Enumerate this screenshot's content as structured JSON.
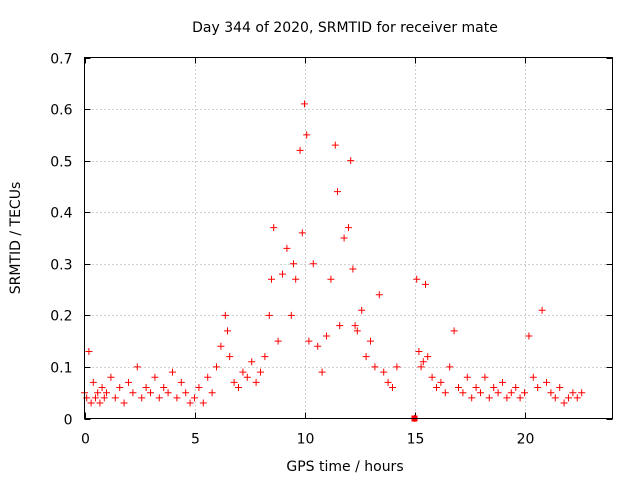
{
  "chart_data": {
    "type": "scatter",
    "title": "Day 344 of 2020, SRMTID for receiver mate",
    "xlabel": "GPS time / hours",
    "ylabel": "SRMTID / TECUs",
    "xlim": [
      0,
      24
    ],
    "ylim": [
      0,
      0.7
    ],
    "xticks": [
      0,
      5,
      10,
      15,
      20
    ],
    "yticks": [
      0,
      0.1,
      0.2,
      0.3,
      0.4,
      0.5,
      0.6,
      0.7
    ],
    "xtick_labels": [
      "0",
      "5",
      "10",
      "15",
      "20"
    ],
    "ytick_labels": [
      "0",
      "0.1",
      "0.2",
      "0.3",
      "0.4",
      "0.5",
      "0.6",
      "0.7"
    ],
    "grid": true,
    "marker": "+",
    "color": "#ff0000",
    "series": [
      {
        "name": "SRMTID",
        "x": [
          0.0,
          0.1,
          0.2,
          0.3,
          0.4,
          0.5,
          0.6,
          0.7,
          0.8,
          0.9,
          1.0,
          1.2,
          1.4,
          1.6,
          1.8,
          2.0,
          2.2,
          2.4,
          2.6,
          2.8,
          3.0,
          3.2,
          3.4,
          3.6,
          3.8,
          4.0,
          4.2,
          4.4,
          4.6,
          4.8,
          5.0,
          5.2,
          5.4,
          5.6,
          5.8,
          6.0,
          6.2,
          6.4,
          6.5,
          6.6,
          6.8,
          7.0,
          7.2,
          7.4,
          7.6,
          7.8,
          8.0,
          8.2,
          8.4,
          8.5,
          8.6,
          8.8,
          9.0,
          9.2,
          9.4,
          9.5,
          9.6,
          9.8,
          9.9,
          10.0,
          10.1,
          10.2,
          10.4,
          10.6,
          10.8,
          11.0,
          11.2,
          11.4,
          11.5,
          11.6,
          11.8,
          12.0,
          12.1,
          12.2,
          12.3,
          12.4,
          12.6,
          12.8,
          13.0,
          13.2,
          13.4,
          13.6,
          13.8,
          14.0,
          14.2,
          15.0,
          15.1,
          15.2,
          15.3,
          15.4,
          15.5,
          15.6,
          15.8,
          16.0,
          16.2,
          16.4,
          16.6,
          16.8,
          17.0,
          17.2,
          17.4,
          17.6,
          17.8,
          18.0,
          18.2,
          18.4,
          18.6,
          18.8,
          19.0,
          19.2,
          19.4,
          19.6,
          19.8,
          20.0,
          20.2,
          20.4,
          20.6,
          20.8,
          21.0,
          21.2,
          21.4,
          21.6,
          21.8,
          22.0,
          22.2,
          22.4,
          22.6
        ],
        "values": [
          0.05,
          0.04,
          0.13,
          0.03,
          0.07,
          0.04,
          0.05,
          0.03,
          0.06,
          0.04,
          0.05,
          0.08,
          0.04,
          0.06,
          0.03,
          0.07,
          0.05,
          0.1,
          0.04,
          0.06,
          0.05,
          0.08,
          0.04,
          0.06,
          0.05,
          0.09,
          0.04,
          0.07,
          0.05,
          0.03,
          0.04,
          0.06,
          0.03,
          0.08,
          0.05,
          0.1,
          0.14,
          0.2,
          0.17,
          0.12,
          0.07,
          0.06,
          0.09,
          0.08,
          0.11,
          0.07,
          0.09,
          0.12,
          0.2,
          0.27,
          0.37,
          0.15,
          0.28,
          0.33,
          0.2,
          0.3,
          0.27,
          0.52,
          0.36,
          0.61,
          0.55,
          0.15,
          0.3,
          0.14,
          0.09,
          0.16,
          0.27,
          0.53,
          0.44,
          0.18,
          0.35,
          0.37,
          0.5,
          0.29,
          0.18,
          0.17,
          0.21,
          0.12,
          0.15,
          0.1,
          0.24,
          0.09,
          0.07,
          0.06,
          0.1,
          0.0,
          0.27,
          0.13,
          0.1,
          0.11,
          0.26,
          0.12,
          0.08,
          0.06,
          0.07,
          0.05,
          0.1,
          0.17,
          0.06,
          0.05,
          0.08,
          0.04,
          0.06,
          0.05,
          0.08,
          0.04,
          0.06,
          0.05,
          0.07,
          0.04,
          0.05,
          0.06,
          0.04,
          0.05,
          0.16,
          0.08,
          0.06,
          0.21,
          0.07,
          0.05,
          0.04,
          0.06,
          0.03,
          0.04,
          0.05,
          0.04,
          0.05
        ]
      }
    ],
    "special_marker": {
      "x": 15.0,
      "y": 0.0,
      "shape": "square"
    }
  }
}
